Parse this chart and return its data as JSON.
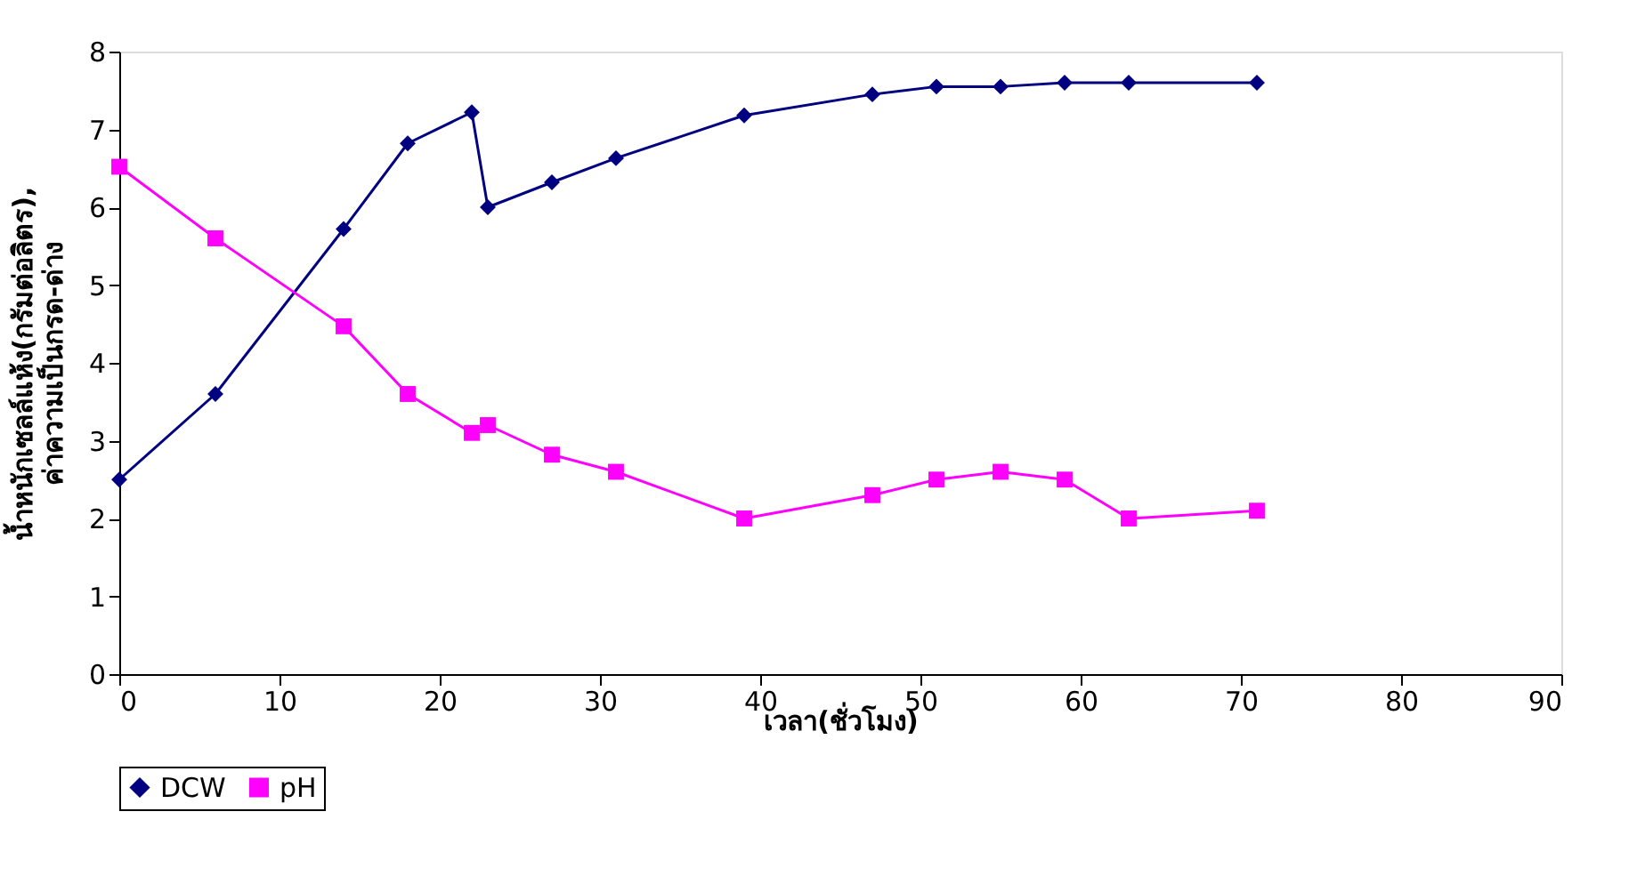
{
  "chart_data": {
    "type": "line",
    "xlabel": "เวลา(ชั่วโมง)",
    "ylabel": "น้ำหนักเซลล์แห้ง(กรัมต่อลิตร),\nค่าความเป็นกรด-ด่าง",
    "x": [
      0,
      6,
      14,
      18,
      22,
      23,
      27,
      31,
      39,
      47,
      51,
      55,
      59,
      63,
      71
    ],
    "series": [
      {
        "name": "DCW",
        "color": "#000080",
        "marker": "diamond",
        "values": [
          2.5,
          3.6,
          5.72,
          6.82,
          7.22,
          6.0,
          6.32,
          6.63,
          7.18,
          7.45,
          7.55,
          7.55,
          7.6,
          7.6,
          7.6
        ]
      },
      {
        "name": "pH",
        "color": "#ff00ff",
        "marker": "square",
        "values": [
          6.52,
          5.6,
          4.47,
          3.6,
          3.1,
          3.2,
          2.82,
          2.6,
          2.0,
          2.3,
          2.5,
          2.6,
          2.5,
          2.0,
          2.1
        ]
      }
    ],
    "xlim": [
      0,
      90
    ],
    "xticks": [
      0,
      10,
      20,
      30,
      40,
      50,
      60,
      70,
      80,
      90
    ],
    "ylim": [
      0,
      8
    ],
    "yticks": [
      0,
      1,
      2,
      3,
      4,
      5,
      6,
      7,
      8
    ],
    "grid": false,
    "legend": "bottom",
    "line_style": "solid"
  }
}
